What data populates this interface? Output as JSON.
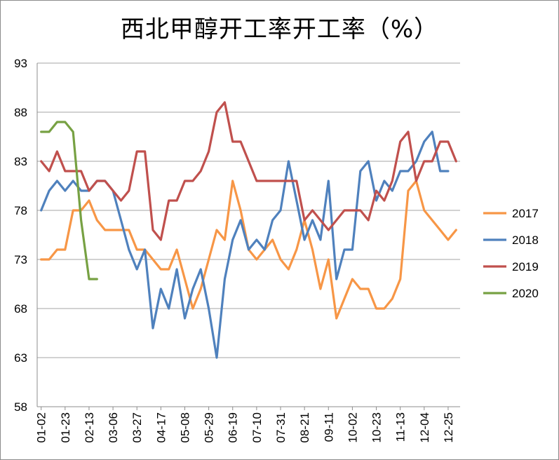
{
  "chart_data": {
    "type": "line",
    "title": "西北甲醇开工率开工率（%）",
    "xlabel": "",
    "ylabel": "",
    "ylim": [
      58,
      93
    ],
    "yticks": [
      58,
      63,
      68,
      73,
      78,
      83,
      88,
      93
    ],
    "x_tick_labels": [
      "01-02",
      "01-23",
      "02-13",
      "03-06",
      "03-27",
      "04-17",
      "05-08",
      "05-29",
      "06-19",
      "07-10",
      "07-31",
      "08-21",
      "09-11",
      "10-02",
      "10-23",
      "11-13",
      "12-04",
      "12-25"
    ],
    "grid": true,
    "legend_position": "right",
    "series": [
      {
        "name": "2017",
        "color": "#f79646",
        "values": [
          73,
          73,
          74,
          74,
          78,
          78,
          79,
          77,
          76,
          76,
          76,
          76,
          74,
          74,
          73,
          72,
          72,
          74,
          71,
          68,
          70,
          73,
          76,
          75,
          81,
          78,
          74,
          73,
          74,
          75,
          73,
          72,
          74,
          77,
          74,
          70,
          73,
          67,
          69,
          71,
          70,
          70,
          68,
          68,
          69,
          71,
          80,
          81,
          78,
          77,
          76,
          75,
          76
        ]
      },
      {
        "name": "2018",
        "color": "#4f81bd",
        "values": [
          78,
          80,
          81,
          80,
          81,
          80,
          80,
          81,
          81,
          80,
          77,
          74,
          72,
          74,
          66,
          70,
          68,
          72,
          67,
          70,
          72,
          68,
          63,
          71,
          75,
          77,
          74,
          75,
          74,
          77,
          78,
          83,
          79,
          75,
          77,
          75,
          81,
          71,
          74,
          74,
          82,
          83,
          79,
          81,
          80,
          82,
          82,
          83,
          85,
          86,
          82,
          82
        ]
      },
      {
        "name": "2019",
        "color": "#c0504d",
        "values": [
          83,
          82,
          84,
          82,
          82,
          82,
          80,
          81,
          81,
          80,
          79,
          80,
          84,
          84,
          76,
          75,
          79,
          79,
          81,
          81,
          82,
          84,
          88,
          89,
          85,
          85,
          83,
          81,
          81,
          81,
          81,
          81,
          81,
          77,
          78,
          77,
          76,
          77,
          78,
          78,
          78,
          77,
          80,
          79,
          81,
          85,
          86,
          81,
          83,
          83,
          85,
          85,
          83
        ]
      },
      {
        "name": "2020",
        "color": "#77a143",
        "values": [
          86,
          86,
          87,
          87,
          86,
          77,
          71,
          71
        ]
      }
    ]
  }
}
